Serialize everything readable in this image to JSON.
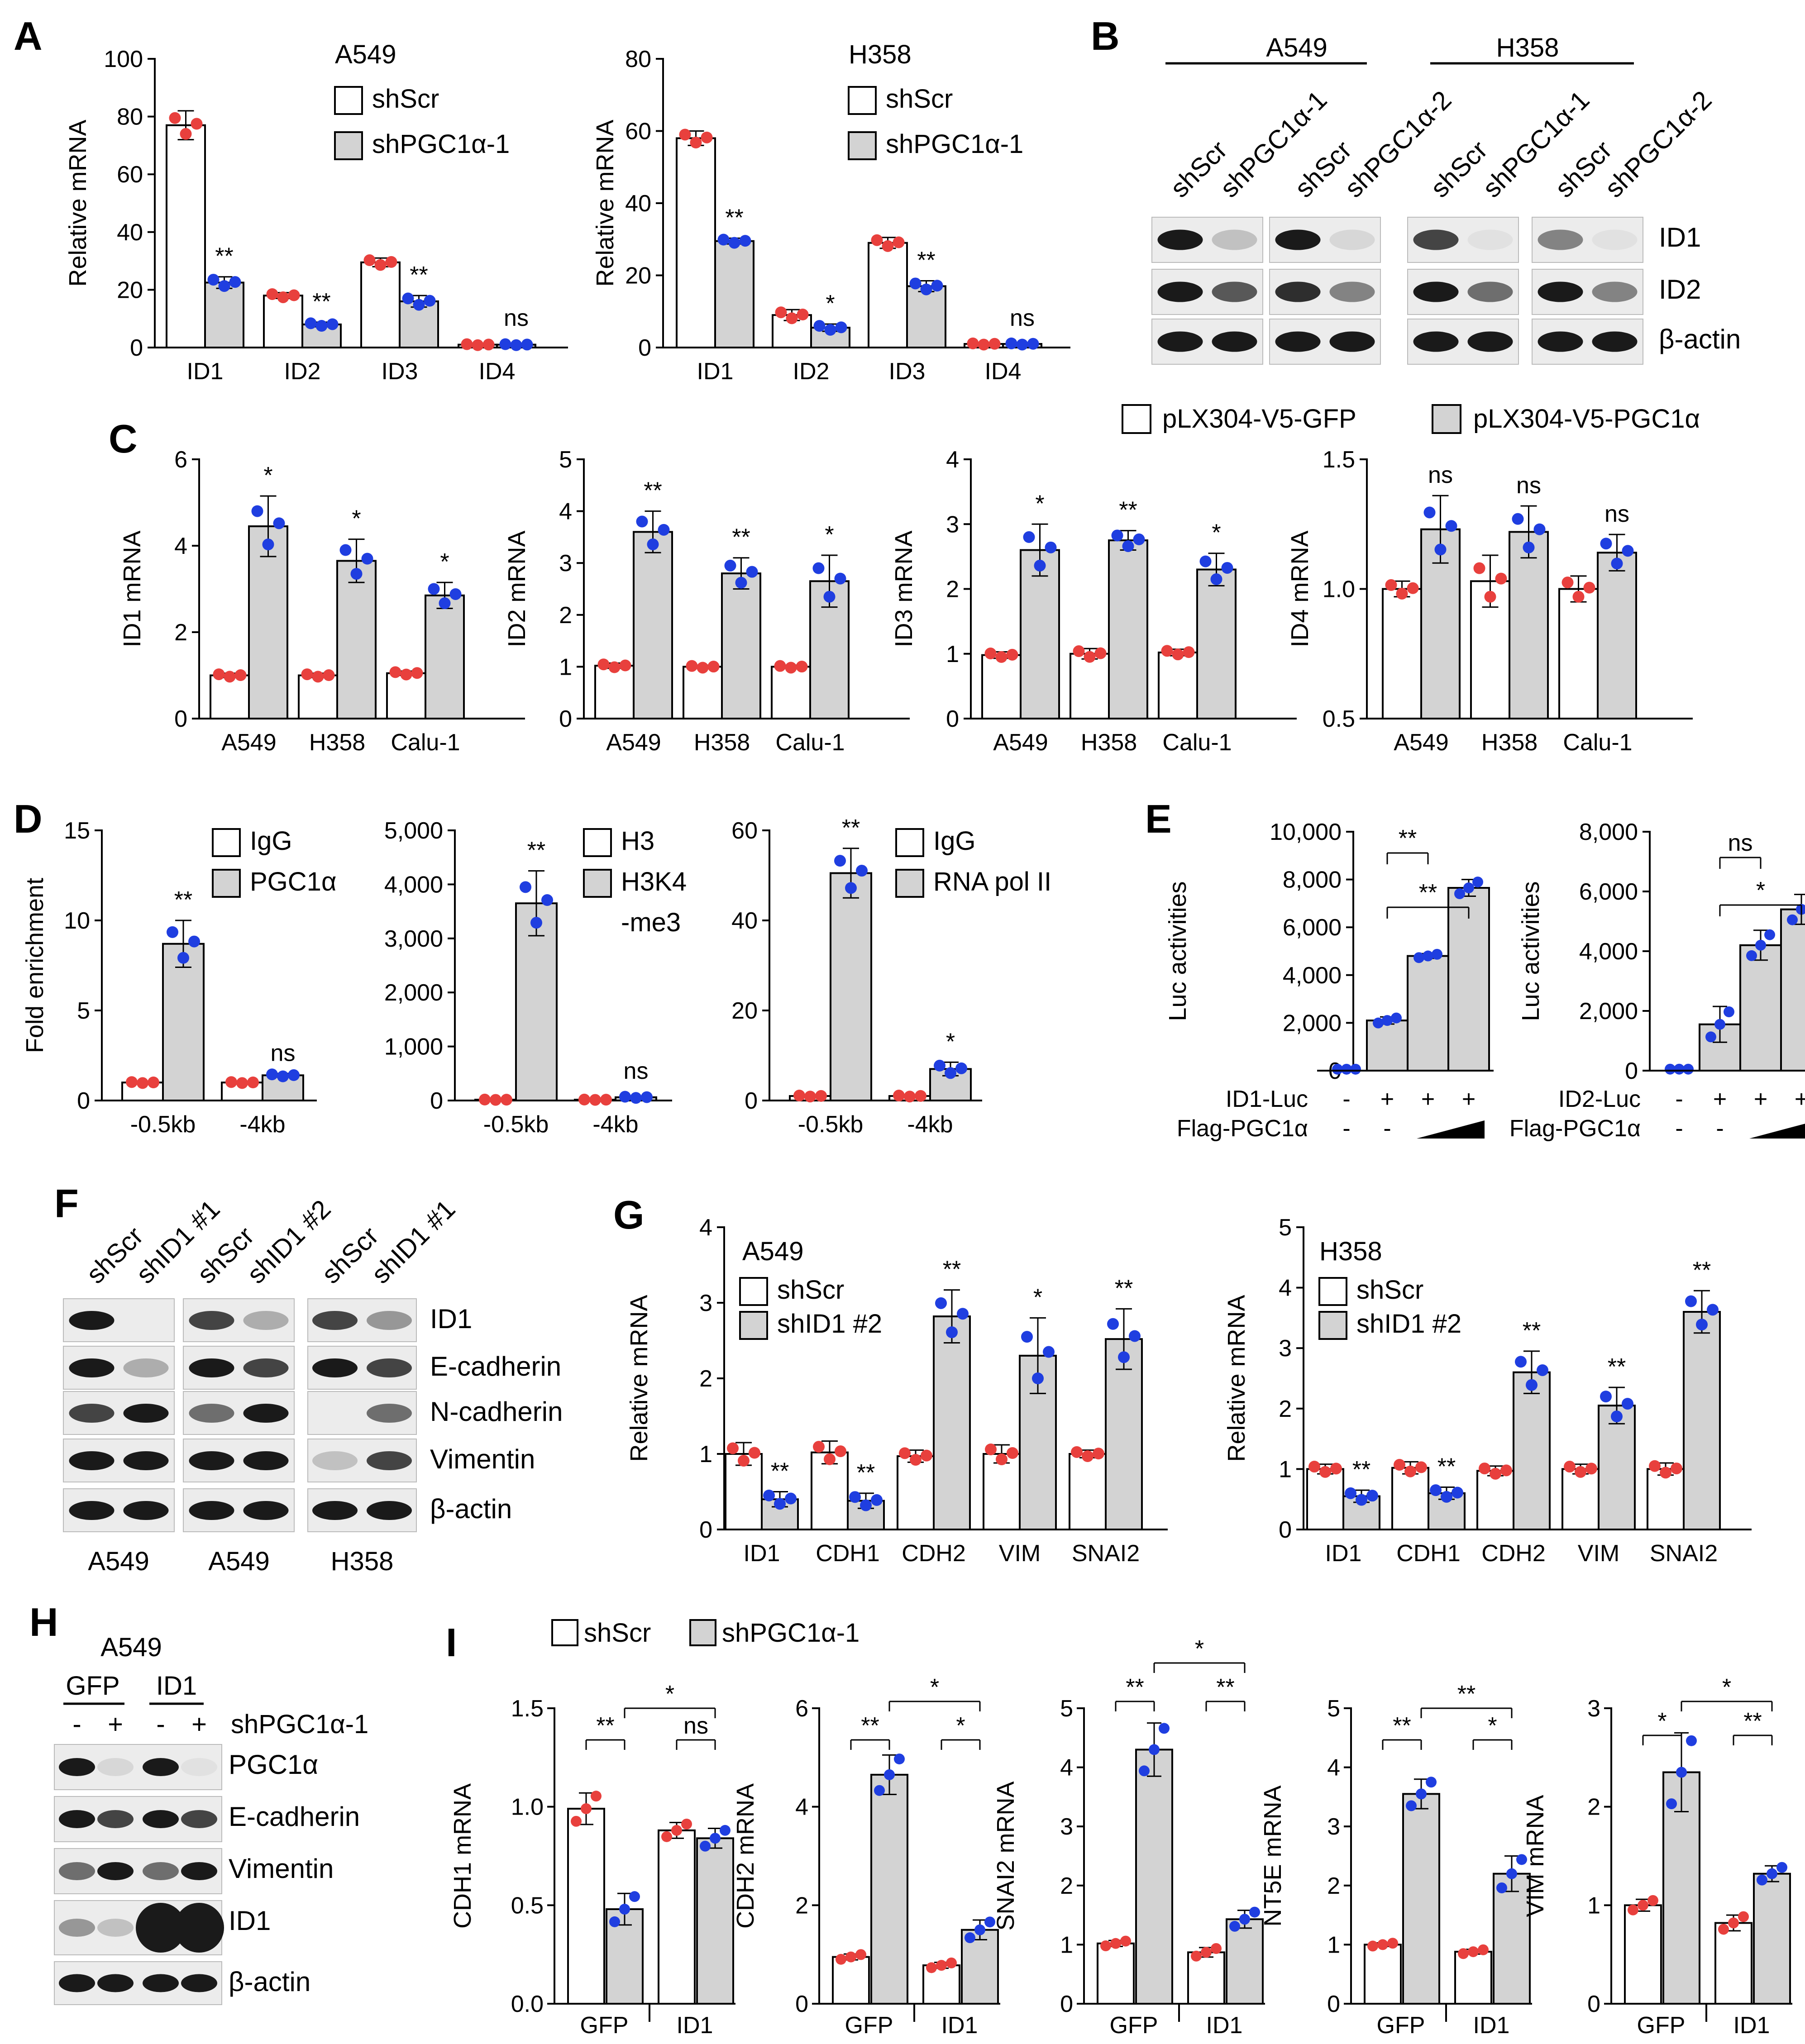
{
  "colors": {
    "red_dot": "#e8403d",
    "blue_dot": "#1f3ee0",
    "bar_fill": "#d3d3d3",
    "band": "#1a1a1a"
  },
  "panel_labels": [
    "A",
    "B",
    "C",
    "D",
    "E",
    "F",
    "G",
    "H",
    "I"
  ],
  "chart_data": [
    {
      "id": "A1",
      "type": "bar",
      "title": "A549",
      "ylabel": "Relative mRNA",
      "ylim": [
        0,
        100
      ],
      "yticks": [
        "0",
        "20",
        "40",
        "60",
        "80",
        "100"
      ],
      "categories": [
        "ID1",
        "ID2",
        "ID3",
        "ID4"
      ],
      "legend": [
        "shScr",
        "shPGC1α-1"
      ],
      "series": [
        {
          "name": "shScr",
          "values": [
            77,
            18,
            29.5,
            1
          ]
        },
        {
          "name": "shPGC1α-1",
          "values": [
            22.5,
            8,
            16,
            1
          ]
        }
      ],
      "errors": [
        [
          5,
          1,
          1.5,
          0.3
        ],
        [
          2,
          0.8,
          2,
          0.3
        ]
      ],
      "sig": [
        "**",
        "**",
        "**",
        "ns"
      ]
    },
    {
      "id": "A2",
      "type": "bar",
      "title": "H358",
      "ylabel": "Relative mRNA",
      "ylim": [
        0,
        80
      ],
      "yticks": [
        "0",
        "20",
        "40",
        "60",
        "80"
      ],
      "categories": [
        "ID1",
        "ID2",
        "ID3",
        "ID4"
      ],
      "legend": [
        "shScr",
        "shPGC1α-1"
      ],
      "series": [
        {
          "name": "shScr",
          "values": [
            58,
            9,
            29,
            1
          ]
        },
        {
          "name": "shPGC1α-1",
          "values": [
            29.5,
            5.5,
            17,
            1
          ]
        }
      ],
      "errors": [
        [
          2,
          1.5,
          1.5,
          0.3
        ],
        [
          0.8,
          1,
          1.5,
          0.3
        ]
      ],
      "sig": [
        "**",
        "*",
        "**",
        "ns"
      ]
    },
    {
      "id": "C1",
      "type": "bar",
      "ylabel": "ID1 mRNA",
      "ylim": [
        0,
        6
      ],
      "yticks": [
        "0",
        "2",
        "4",
        "6"
      ],
      "categories": [
        "A549",
        "H358",
        "Calu-1"
      ],
      "legend": [
        "pLX304-V5-GFP",
        "pLX304-V5-PGC1α"
      ],
      "series": [
        {
          "name": "pLX304-V5-GFP",
          "values": [
            1,
            1,
            1.05
          ]
        },
        {
          "name": "pLX304-V5-PGC1α",
          "values": [
            4.45,
            3.65,
            2.85
          ]
        }
      ],
      "errors": [
        [
          0.05,
          0.05,
          0.05
        ],
        [
          0.7,
          0.5,
          0.3
        ]
      ],
      "sig": [
        "*",
        "*",
        "*"
      ]
    },
    {
      "id": "C2",
      "type": "bar",
      "ylabel": "ID2 mRNA",
      "ylim": [
        0,
        5
      ],
      "yticks": [
        "0",
        "1",
        "2",
        "3",
        "4",
        "5"
      ],
      "categories": [
        "A549",
        "H358",
        "Calu-1"
      ],
      "legend": [
        "pLX304-V5-GFP",
        "pLX304-V5-PGC1α"
      ],
      "series": [
        {
          "name": "pLX304-V5-GFP",
          "values": [
            1.02,
            1,
            1
          ]
        },
        {
          "name": "pLX304-V5-PGC1α",
          "values": [
            3.6,
            2.8,
            2.65
          ]
        }
      ],
      "errors": [
        [
          0.05,
          0.03,
          0.03
        ],
        [
          0.4,
          0.3,
          0.5
        ]
      ],
      "sig": [
        "**",
        "**",
        "*"
      ]
    },
    {
      "id": "C3",
      "type": "bar",
      "ylabel": "ID3 mRNA",
      "ylim": [
        0,
        4
      ],
      "yticks": [
        "0",
        "1",
        "2",
        "3",
        "4"
      ],
      "categories": [
        "A549",
        "H358",
        "Calu-1"
      ],
      "legend": [
        "pLX304-V5-GFP",
        "pLX304-V5-PGC1α"
      ],
      "series": [
        {
          "name": "pLX304-V5-GFP",
          "values": [
            0.98,
            1,
            1.02
          ]
        },
        {
          "name": "pLX304-V5-PGC1α",
          "values": [
            2.6,
            2.75,
            2.3
          ]
        }
      ],
      "errors": [
        [
          0.05,
          0.08,
          0.05
        ],
        [
          0.4,
          0.15,
          0.25
        ]
      ],
      "sig": [
        "*",
        "**",
        "*"
      ]
    },
    {
      "id": "C4",
      "type": "bar",
      "ylabel": "ID4 mRNA",
      "ylim": [
        0.5,
        1.5
      ],
      "yticks": [
        "0.5",
        "1.0",
        "1.5"
      ],
      "categories": [
        "A549",
        "H358",
        "Calu-1"
      ],
      "legend": [
        "pLX304-V5-GFP",
        "pLX304-V5-PGC1α"
      ],
      "series": [
        {
          "name": "pLX304-V5-GFP",
          "values": [
            1,
            1.03,
            1
          ]
        },
        {
          "name": "pLX304-V5-PGC1α",
          "values": [
            1.23,
            1.22,
            1.14
          ]
        }
      ],
      "errors": [
        [
          0.03,
          0.1,
          0.05
        ],
        [
          0.13,
          0.1,
          0.07
        ]
      ],
      "sig": [
        "ns",
        "ns",
        "ns"
      ]
    },
    {
      "id": "D1",
      "type": "bar",
      "ylabel": "Fold enrichment",
      "ylim": [
        0,
        15
      ],
      "yticks": [
        "0",
        "5",
        "10",
        "15"
      ],
      "categories": [
        "-0.5kb",
        "-4kb"
      ],
      "legend": [
        "IgG",
        "PGC1α"
      ],
      "series": [
        {
          "name": "IgG",
          "values": [
            1,
            1
          ]
        },
        {
          "name": "PGC1α",
          "values": [
            8.7,
            1.4
          ]
        }
      ],
      "errors": [
        [
          0.05,
          0.05
        ],
        [
          1.3,
          0.1
        ]
      ],
      "sig": [
        "**",
        "ns"
      ]
    },
    {
      "id": "D2",
      "type": "bar",
      "ylim": [
        0,
        5000
      ],
      "yticks": [
        "0",
        "1,000",
        "2,000",
        "3,000",
        "4,000",
        "5,000"
      ],
      "categories": [
        "-0.5kb",
        "-4kb"
      ],
      "legend": [
        "H3",
        "H3K4",
        "-me3"
      ],
      "series": [
        {
          "name": "H3",
          "values": [
            15,
            15
          ]
        },
        {
          "name": "H3K4-me3",
          "values": [
            3650,
            60
          ]
        }
      ],
      "errors": [
        [
          5,
          5
        ],
        [
          600,
          20
        ]
      ],
      "sig": [
        "**",
        "ns"
      ]
    },
    {
      "id": "D3",
      "type": "bar",
      "ylim": [
        0,
        60
      ],
      "yticks": [
        "0",
        "20",
        "40",
        "60"
      ],
      "categories": [
        "-0.5kb",
        "-4kb"
      ],
      "legend": [
        "IgG",
        "RNA pol II"
      ],
      "series": [
        {
          "name": "IgG",
          "values": [
            1,
            1
          ]
        },
        {
          "name": "RNA pol II",
          "values": [
            50.5,
            7
          ]
        }
      ],
      "errors": [
        [
          0.2,
          0.2
        ],
        [
          5.5,
          1.5
        ]
      ],
      "sig": [
        "**",
        "*"
      ]
    },
    {
      "id": "E1",
      "type": "bar",
      "ylabel": "Luc activities",
      "ylim": [
        0,
        10000
      ],
      "yticks": [
        "0",
        "2,000",
        "4,000",
        "6,000",
        "8,000",
        "10,000"
      ],
      "row1_label": "ID1-Luc",
      "row1": [
        "-",
        "+",
        "+",
        "+"
      ],
      "row2_label": "Flag-PGC1α",
      "row2": [
        "-",
        "-"
      ],
      "values": [
        60,
        2100,
        4800,
        7650
      ],
      "errors": [
        0,
        150,
        100,
        350
      ],
      "brackets": [
        {
          "from": 1,
          "to": 2,
          "label": "**"
        },
        {
          "from": 1,
          "to": 3,
          "label": "**"
        }
      ]
    },
    {
      "id": "E2",
      "type": "bar",
      "ylabel": "Luc activities",
      "ylim": [
        0,
        8000
      ],
      "yticks": [
        "0",
        "2,000",
        "4,000",
        "6,000",
        "8,000"
      ],
      "row1_label": "ID2-Luc",
      "row1": [
        "-",
        "+",
        "+",
        "+"
      ],
      "row2_label": "Flag-PGC1α",
      "row2": [
        "-",
        "-"
      ],
      "values": [
        50,
        1550,
        4200,
        5400
      ],
      "errors": [
        0,
        600,
        500,
        500
      ],
      "brackets": [
        {
          "from": 1,
          "to": 2,
          "label": "ns"
        },
        {
          "from": 1,
          "to": 3,
          "label": "*"
        }
      ]
    },
    {
      "id": "G1",
      "type": "bar",
      "title": "A549",
      "ylabel": "Relative mRNA",
      "ylim": [
        0,
        4
      ],
      "yticks": [
        "0",
        "1",
        "2",
        "3",
        "4"
      ],
      "categories": [
        "ID1",
        "CDH1",
        "CDH2",
        "VIM",
        "SNAI2"
      ],
      "legend": [
        "shScr",
        "shID1 #2"
      ],
      "series": [
        {
          "name": "shScr",
          "values": [
            1,
            1.02,
            0.97,
            1,
            1
          ]
        },
        {
          "name": "shID1 #2",
          "values": [
            0.4,
            0.38,
            2.82,
            2.3,
            2.52
          ]
        }
      ],
      "errors": [
        [
          0.15,
          0.15,
          0.08,
          0.12,
          0.05
        ],
        [
          0.1,
          0.1,
          0.35,
          0.5,
          0.4
        ]
      ],
      "sig": [
        "**",
        "**",
        "**",
        "*",
        "**"
      ]
    },
    {
      "id": "G2",
      "type": "bar",
      "title": "H358",
      "ylabel": "Relative mRNA",
      "ylim": [
        0,
        5
      ],
      "yticks": [
        "0",
        "1",
        "2",
        "3",
        "4",
        "5"
      ],
      "categories": [
        "ID1",
        "CDH1",
        "CDH2",
        "VIM",
        "SNAI2"
      ],
      "legend": [
        "shScr",
        "shID1 #2"
      ],
      "series": [
        {
          "name": "shScr",
          "values": [
            1,
            1.02,
            0.97,
            1,
            1
          ]
        },
        {
          "name": "shID1 #2",
          "values": [
            0.55,
            0.6,
            2.6,
            2.05,
            3.6
          ]
        }
      ],
      "errors": [
        [
          0.08,
          0.1,
          0.08,
          0.08,
          0.1
        ],
        [
          0.1,
          0.1,
          0.35,
          0.3,
          0.35
        ]
      ],
      "sig": [
        "**",
        "**",
        "**",
        "**",
        "**"
      ]
    },
    {
      "id": "I1",
      "type": "bar",
      "ylabel": "CDH1 mRNA",
      "ylim": [
        0,
        1.5
      ],
      "yticks": [
        "0.0",
        "0.5",
        "1.0",
        "1.5"
      ],
      "categories": [
        "GFP",
        "ID1"
      ],
      "legend": [
        "shScr",
        "shPGC1α-1"
      ],
      "series": [
        {
          "name": "shScr",
          "values": [
            0.99,
            0.88
          ]
        },
        {
          "name": "shPGC1α-1",
          "values": [
            0.48,
            0.84
          ]
        }
      ],
      "errors": [
        [
          0.08,
          0.04
        ],
        [
          0.08,
          0.05
        ]
      ],
      "brackets": [
        "**",
        "ns",
        "*"
      ]
    },
    {
      "id": "I2",
      "type": "bar",
      "ylabel": "CDH2 mRNA",
      "ylim": [
        0,
        6
      ],
      "yticks": [
        "0",
        "2",
        "4",
        "6"
      ],
      "categories": [
        "GFP",
        "ID1"
      ],
      "legend": [
        "shScr",
        "shPGC1α-1"
      ],
      "series": [
        {
          "name": "shScr",
          "values": [
            0.95,
            0.78
          ]
        },
        {
          "name": "shPGC1α-1",
          "values": [
            4.65,
            1.5
          ]
        }
      ],
      "errors": [
        [
          0.06,
          0.06
        ],
        [
          0.4,
          0.2
        ]
      ],
      "brackets": [
        "**",
        "*",
        "*"
      ]
    },
    {
      "id": "I3",
      "type": "bar",
      "ylabel": "SNAI2 mRNA",
      "ylim": [
        0,
        5
      ],
      "yticks": [
        "0",
        "1",
        "2",
        "3",
        "4",
        "5"
      ],
      "categories": [
        "GFP",
        "ID1"
      ],
      "legend": [
        "shScr",
        "shPGC1α-1"
      ],
      "series": [
        {
          "name": "shScr",
          "values": [
            1.02,
            0.87
          ]
        },
        {
          "name": "shPGC1α-1",
          "values": [
            4.3,
            1.43
          ]
        }
      ],
      "errors": [
        [
          0.05,
          0.08
        ],
        [
          0.45,
          0.15
        ]
      ],
      "brackets": [
        "**",
        "**",
        "*"
      ]
    },
    {
      "id": "I4",
      "type": "bar",
      "ylabel": "NT5E mRNA",
      "ylim": [
        0,
        5
      ],
      "yticks": [
        "0",
        "1",
        "2",
        "3",
        "4",
        "5"
      ],
      "categories": [
        "GFP",
        "ID1"
      ],
      "legend": [
        "shScr",
        "shPGC1α-1"
      ],
      "series": [
        {
          "name": "shScr",
          "values": [
            1,
            0.88
          ]
        },
        {
          "name": "shPGC1α-1",
          "values": [
            3.55,
            2.2
          ]
        }
      ],
      "errors": [
        [
          0.03,
          0.04
        ],
        [
          0.25,
          0.3
        ]
      ],
      "brackets": [
        "**",
        "*",
        "**"
      ]
    },
    {
      "id": "I5",
      "type": "bar",
      "ylabel": "VIM mRNA",
      "ylim": [
        0,
        3
      ],
      "yticks": [
        "0",
        "1",
        "2",
        "3"
      ],
      "categories": [
        "GFP",
        "ID1"
      ],
      "legend": [
        "shScr",
        "shPGC1α-1"
      ],
      "series": [
        {
          "name": "shScr",
          "values": [
            1,
            0.82
          ]
        },
        {
          "name": "shPGC1α-1",
          "values": [
            2.35,
            1.32
          ]
        }
      ],
      "errors": [
        [
          0.06,
          0.08
        ],
        [
          0.4,
          0.08
        ]
      ],
      "brackets": [
        "*",
        "**",
        "*"
      ]
    }
  ],
  "blots": {
    "B": {
      "headers": [
        "A549",
        "H358"
      ],
      "lanes": [
        "shScr",
        "shPGC1α-1",
        "shScr",
        "shPGC1α-2",
        "shScr",
        "shPGC1α-1",
        "shScr",
        "shPGC1α-2"
      ],
      "rows": [
        "ID1",
        "ID2",
        "β-actin"
      ]
    },
    "F": {
      "lanes": [
        "shScr",
        "shID1 #1",
        "shScr",
        "shID1 #2",
        "shScr",
        "shID1 #1"
      ],
      "rows": [
        "ID1",
        "E-cadherin",
        "N-cadherin",
        "Vimentin",
        "β-actin"
      ],
      "bottom": [
        "A549",
        "A549",
        "H358"
      ]
    },
    "H": {
      "title": "A549",
      "groups": [
        "GFP",
        "ID1"
      ],
      "lanes": [
        "-",
        "+",
        "-",
        "+"
      ],
      "lane_label": "shPGC1α-1",
      "rows": [
        "PGC1α",
        "E-cadherin",
        "Vimentin",
        "ID1",
        "β-actin"
      ]
    }
  }
}
